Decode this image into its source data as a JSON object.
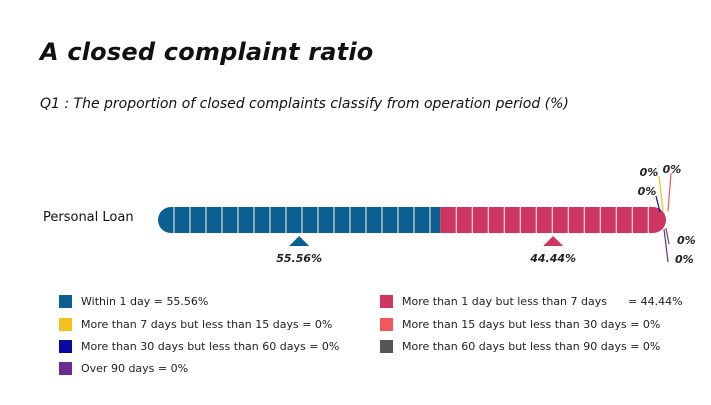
{
  "header": {
    "title": "A closed complaint ratio",
    "subtitle": "Q1 : The proportion of closed complaints classify from operation period (%)"
  },
  "chart_data": {
    "type": "bar",
    "orientation": "horizontal-stacked",
    "categories": [
      "Personal Loan"
    ],
    "series": [
      {
        "name": "Within 1 day",
        "values": [
          55.56
        ],
        "color": "#0b5f91",
        "label": "55.56%"
      },
      {
        "name": "More than 1 day but less than 7 days",
        "values": [
          44.44
        ],
        "color": "#cc3660",
        "label": "44.44%"
      },
      {
        "name": "More than 7 days but less than 15 days",
        "values": [
          0
        ],
        "color": "#f5bf1c",
        "label": "0%"
      },
      {
        "name": "More than 15 days but less than 30 days",
        "values": [
          0
        ],
        "color": "#f25858",
        "label": "0%"
      },
      {
        "name": "More than 30 days but less than 60 days",
        "values": [
          0
        ],
        "color": "#0a0aa0",
        "label": "0%"
      },
      {
        "name": "More than 60 days but less than 90 days",
        "values": [
          0
        ],
        "color": "#555555",
        "label": "0%"
      },
      {
        "name": "Over 90 days",
        "values": [
          0
        ],
        "color": "#6a2d8f",
        "label": "0%"
      }
    ],
    "xlim": [
      0,
      100
    ],
    "legend_position": "bottom"
  },
  "legend": {
    "items": [
      {
        "text": "Within 1 day = 55.56%",
        "color": "#0b5f91"
      },
      {
        "text": "More than 1 day but less than 7 days      = 44.44%",
        "color": "#cc3660"
      },
      {
        "text": "More than 7 days but less than 15 days = 0%",
        "color": "#f5bf1c"
      },
      {
        "text": "More than 15 days but less than 30 days = 0%",
        "color": "#f25858"
      },
      {
        "text": "More than 30 days but less than 60 days = 0%",
        "color": "#0a0aa0"
      },
      {
        "text": "More than 60 days but less than 90 days = 0%",
        "color": "#555555"
      },
      {
        "text": "Over 90 days = 0%",
        "color": "#6a2d8f"
      }
    ]
  }
}
